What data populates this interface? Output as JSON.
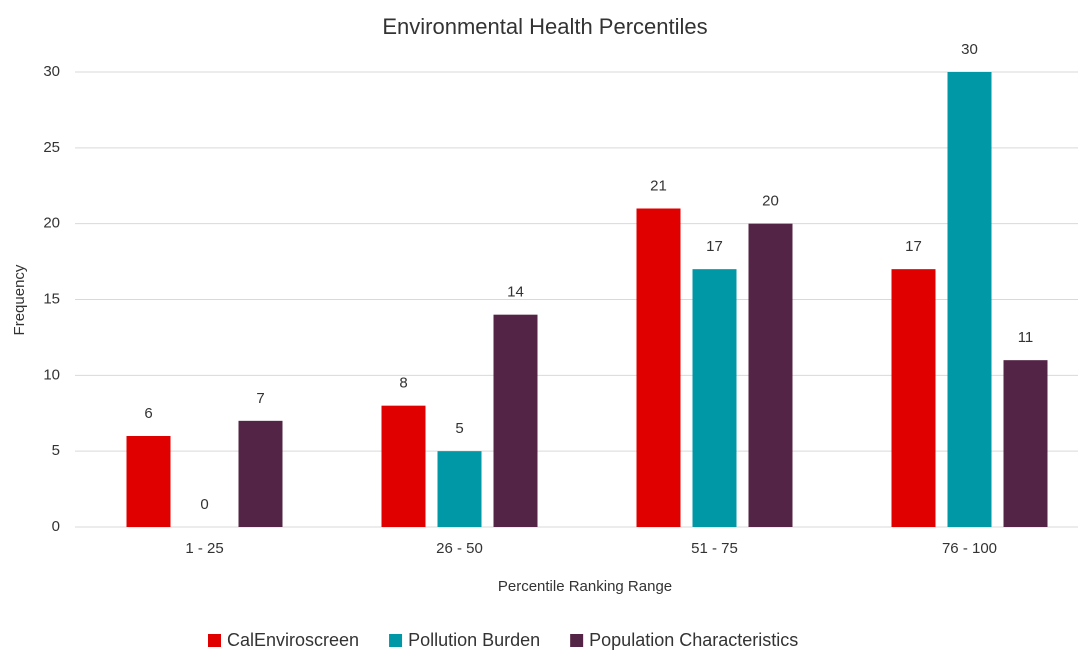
{
  "chart_data": {
    "type": "bar",
    "title": "Environmental Health Percentiles",
    "x_label": "Percentile Ranking Range",
    "y_label": "Frequency",
    "categories": [
      "1 - 25",
      "26 - 50",
      "51 - 75",
      "76 - 100"
    ],
    "series": [
      {
        "name": "CalEnviroscreen",
        "color": "#e00000",
        "values": [
          6,
          8,
          21,
          17
        ]
      },
      {
        "name": "Pollution Burden",
        "color": "#0097a7",
        "values": [
          0,
          5,
          17,
          30
        ]
      },
      {
        "name": "Population Characteristics",
        "color": "#532445",
        "values": [
          7,
          14,
          20,
          11
        ]
      }
    ],
    "ylim": [
      0,
      30
    ],
    "yticks": [
      0,
      5,
      10,
      15,
      20,
      25,
      30
    ],
    "grid": true,
    "legend": "bottom"
  }
}
